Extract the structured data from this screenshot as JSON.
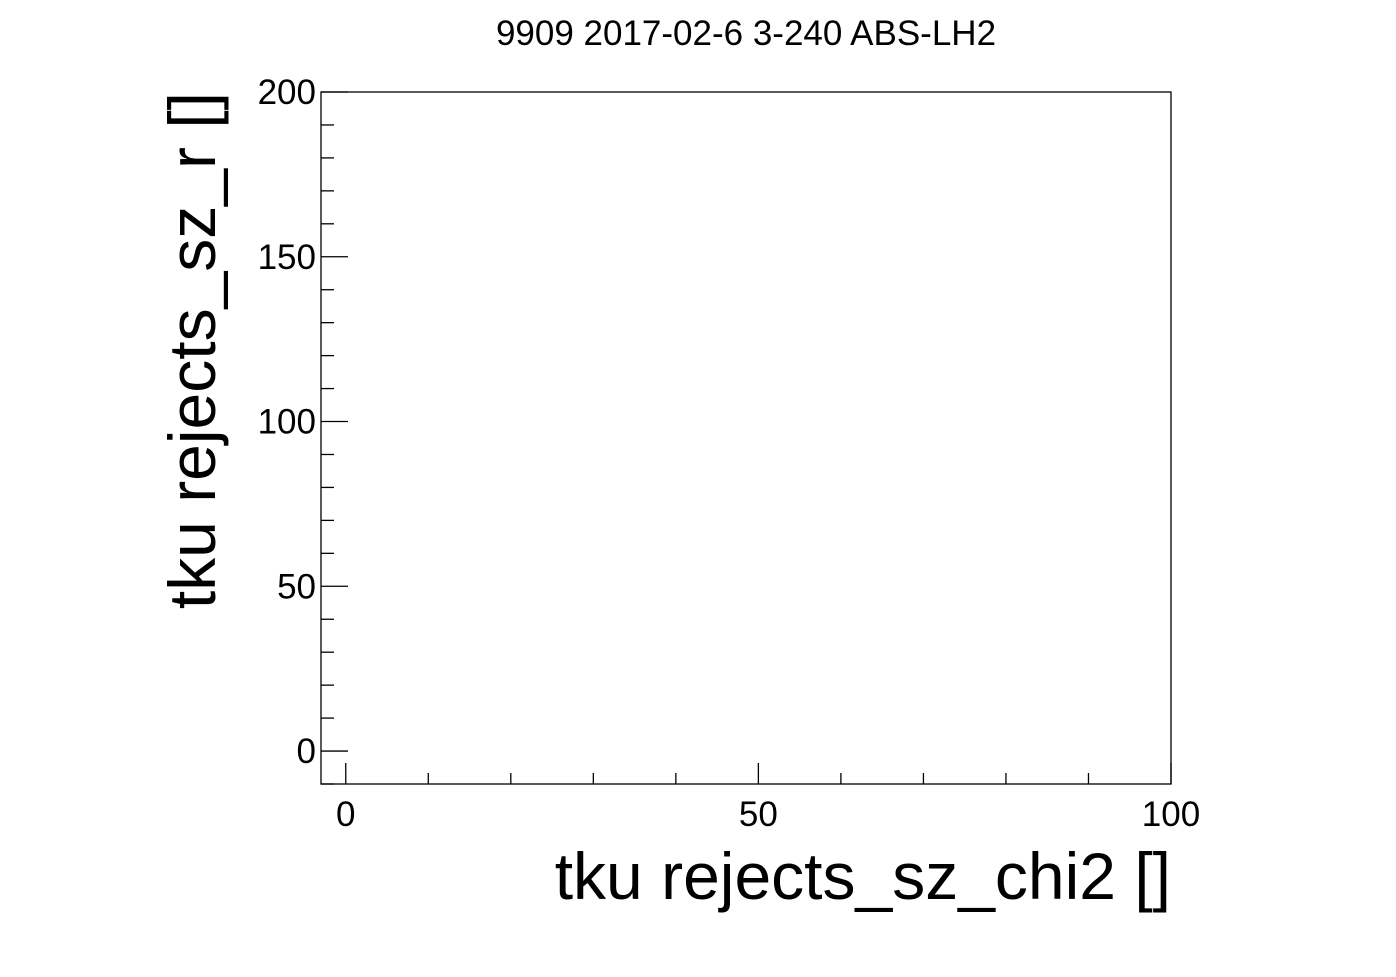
{
  "chart_data": {
    "type": "scatter",
    "title": "9909 2017-02-6 3-240 ABS-LH2",
    "xlabel": "tku rejects_sz_chi2 []",
    "ylabel": "tku rejects_sz_r []",
    "xlim": [
      -3,
      100
    ],
    "ylim": [
      -10,
      200
    ],
    "x_ticks": [
      0,
      50,
      100
    ],
    "x_tick_labels": [
      "0",
      "50",
      "100"
    ],
    "x_minor_step": 10,
    "y_ticks": [
      0,
      50,
      100,
      150,
      200
    ],
    "y_tick_labels": [
      "0",
      "50",
      "100",
      "150",
      "200"
    ],
    "y_minor_step": 10,
    "grid": false,
    "series": [
      {
        "x": [],
        "y": []
      }
    ],
    "colors": {
      "axis": "#000000",
      "background": "#ffffff"
    }
  }
}
